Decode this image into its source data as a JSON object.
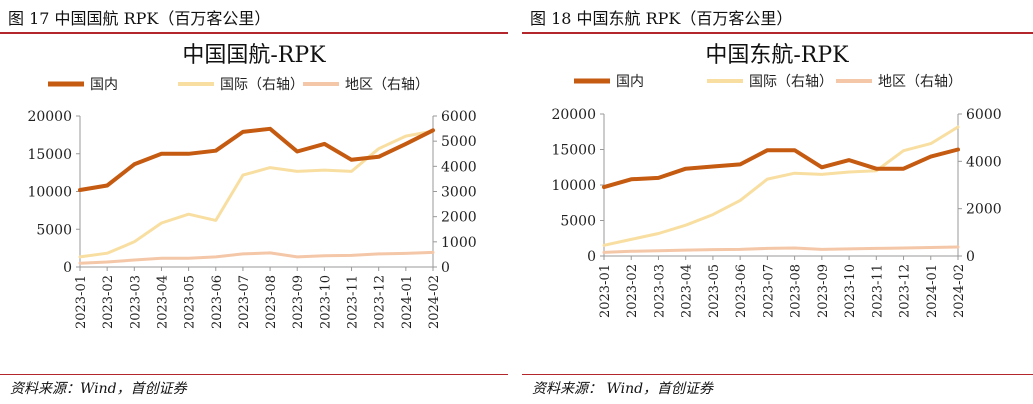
{
  "panels": [
    {
      "caption": "图 17  中国国航 RPK（百万客公里）",
      "source": "资料来源：Wind，首创证券",
      "chart_data": {
        "type": "line",
        "title": "中国国航-RPK",
        "categories": [
          "2023-01",
          "2023-02",
          "2023-03",
          "2023-04",
          "2023-05",
          "2023-06",
          "2023-07",
          "2023-08",
          "2023-09",
          "2023-10",
          "2023-11",
          "2023-12",
          "2024-01",
          "2024-02"
        ],
        "legend_position": "top",
        "grid": false,
        "y_left": {
          "ylim": [
            0,
            20000
          ],
          "ticks": [
            0,
            5000,
            10000,
            15000,
            20000
          ],
          "tick_labels": [
            "0",
            "5000",
            "10000",
            "15000",
            "20000"
          ]
        },
        "y_right": {
          "ylim": [
            0,
            6000
          ],
          "ticks": [
            0,
            1000,
            2000,
            3000,
            4000,
            5000,
            6000
          ],
          "tick_labels": [
            "0",
            "1000",
            "2000",
            "3000",
            "4000",
            "5000",
            "6000"
          ]
        },
        "series": [
          {
            "name": "国内",
            "axis": "left",
            "color": "#c55a11",
            "width": 4,
            "values": [
              10200,
              10800,
              13600,
              15000,
              15000,
              15400,
              17900,
              18300,
              15300,
              16300,
              14200,
              14600,
              16300,
              18100
            ]
          },
          {
            "name": "国际（右轴）",
            "axis": "right",
            "color": "#f8dfa1",
            "width": 3,
            "values": [
              400,
              550,
              1000,
              1750,
              2100,
              1850,
              3650,
              3950,
              3800,
              3850,
              3800,
              4700,
              5200,
              5400
            ]
          },
          {
            "name": "地区（右轴）",
            "axis": "right",
            "color": "#f4c7a8",
            "width": 3,
            "values": [
              150,
              200,
              280,
              350,
              350,
              400,
              520,
              560,
              400,
              450,
              460,
              520,
              540,
              580
            ]
          }
        ]
      }
    },
    {
      "caption": "图 18  中国东航 RPK（百万客公里）",
      "source": "资料来源：  Wind，首创证券",
      "chart_data": {
        "type": "line",
        "title": "中国东航-RPK",
        "categories": [
          "2023-01",
          "2023-02",
          "2023-03",
          "2023-04",
          "2023-05",
          "2023-06",
          "2023-07",
          "2023-08",
          "2023-09",
          "2023-10",
          "2023-11",
          "2023-12",
          "2024-01",
          "2024-02"
        ],
        "legend_position": "top",
        "grid": false,
        "y_left": {
          "ylim": [
            0,
            20000
          ],
          "ticks": [
            0,
            5000,
            10000,
            15000,
            20000
          ],
          "tick_labels": [
            "0",
            "5000",
            "10000",
            "15000",
            "20000"
          ]
        },
        "y_right": {
          "ylim": [
            0,
            6000
          ],
          "ticks": [
            0,
            2000,
            4000,
            6000
          ],
          "tick_labels": [
            "0",
            "2000",
            "4000",
            "6000"
          ]
        },
        "series": [
          {
            "name": "国内",
            "axis": "left",
            "color": "#c55a11",
            "width": 4,
            "values": [
              9700,
              10800,
              11000,
              12300,
              12600,
              12900,
              14900,
              14900,
              12500,
              13500,
              12300,
              12300,
              14000,
              15000
            ]
          },
          {
            "name": "国际（右轴）",
            "axis": "right",
            "color": "#f8dfa1",
            "width": 3,
            "values": [
              450,
              700,
              950,
              1300,
              1750,
              2350,
              3250,
              3500,
              3450,
              3550,
              3600,
              4450,
              4750,
              5450
            ]
          },
          {
            "name": "地区（右轴）",
            "axis": "right",
            "color": "#f4c7a8",
            "width": 3,
            "values": [
              150,
              200,
              220,
              250,
              270,
              280,
              320,
              340,
              280,
              300,
              320,
              340,
              360,
              380
            ]
          }
        ]
      }
    }
  ]
}
